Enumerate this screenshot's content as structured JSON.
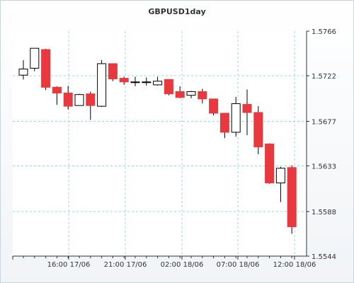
{
  "chart_data": {
    "type": "candlestick",
    "title": "GBPUSD1day",
    "y_ticks": [
      "1.5766",
      "1.5722",
      "1.5677",
      "1.5633",
      "1.5588",
      "1.5544"
    ],
    "x_ticks": [
      "16:00 17/06",
      "21:00 17/06",
      "02:00 18/06",
      "07:00 18/06",
      "12:00 18/06"
    ],
    "ylim": [
      1.5544,
      1.5766
    ],
    "grid": true,
    "candles": [
      {
        "open": 1.57226,
        "close": 1.57286,
        "high": 1.57374,
        "low": 1.57183
      },
      {
        "open": 1.57294,
        "close": 1.57491,
        "high": 1.57491,
        "low": 1.57264
      },
      {
        "open": 1.57478,
        "close": 1.57106,
        "high": 1.57486,
        "low": 1.57078
      },
      {
        "open": 1.57106,
        "close": 1.57049,
        "high": 1.57116,
        "low": 1.56933
      },
      {
        "open": 1.57049,
        "close": 1.56919,
        "high": 1.5712,
        "low": 1.56887
      },
      {
        "open": 1.56926,
        "close": 1.57034,
        "high": 1.57041,
        "low": 1.56926
      },
      {
        "open": 1.57041,
        "close": 1.56926,
        "high": 1.57063,
        "low": 1.56785
      },
      {
        "open": 1.56919,
        "close": 1.57339,
        "high": 1.57375,
        "low": 1.56912
      },
      {
        "open": 1.57339,
        "close": 1.57189,
        "high": 1.57339,
        "low": 1.57167
      },
      {
        "open": 1.57195,
        "close": 1.57159,
        "high": 1.5721,
        "low": 1.5713
      },
      {
        "open": 1.57152,
        "close": 1.57159,
        "high": 1.5721,
        "low": 1.57116
      },
      {
        "open": 1.57152,
        "close": 1.57159,
        "high": 1.57203,
        "low": 1.57123
      },
      {
        "open": 1.5713,
        "close": 1.57166,
        "high": 1.5721,
        "low": 1.57123
      },
      {
        "open": 1.57183,
        "close": 1.57041,
        "high": 1.57183,
        "low": 1.57027
      },
      {
        "open": 1.57063,
        "close": 1.57005,
        "high": 1.57116,
        "low": 1.56998
      },
      {
        "open": 1.57027,
        "close": 1.57063,
        "high": 1.5707,
        "low": 1.56998
      },
      {
        "open": 1.57063,
        "close": 1.56991,
        "high": 1.5709,
        "low": 1.56947
      },
      {
        "open": 1.56991,
        "close": 1.5685,
        "high": 1.56991,
        "low": 1.56828
      },
      {
        "open": 1.5685,
        "close": 1.56662,
        "high": 1.5685,
        "low": 1.56604
      },
      {
        "open": 1.56662,
        "close": 1.56944,
        "high": 1.57012,
        "low": 1.56618
      },
      {
        "open": 1.56937,
        "close": 1.56857,
        "high": 1.57084,
        "low": 1.56633
      },
      {
        "open": 1.56857,
        "close": 1.56517,
        "high": 1.56919,
        "low": 1.56445
      },
      {
        "open": 1.56546,
        "close": 1.56162,
        "high": 1.56553,
        "low": 1.56154
      },
      {
        "open": 1.56162,
        "close": 1.56307,
        "high": 1.56321,
        "low": 1.55973
      },
      {
        "open": 1.56314,
        "close": 1.5573,
        "high": 1.56335,
        "low": 1.5566
      }
    ]
  }
}
